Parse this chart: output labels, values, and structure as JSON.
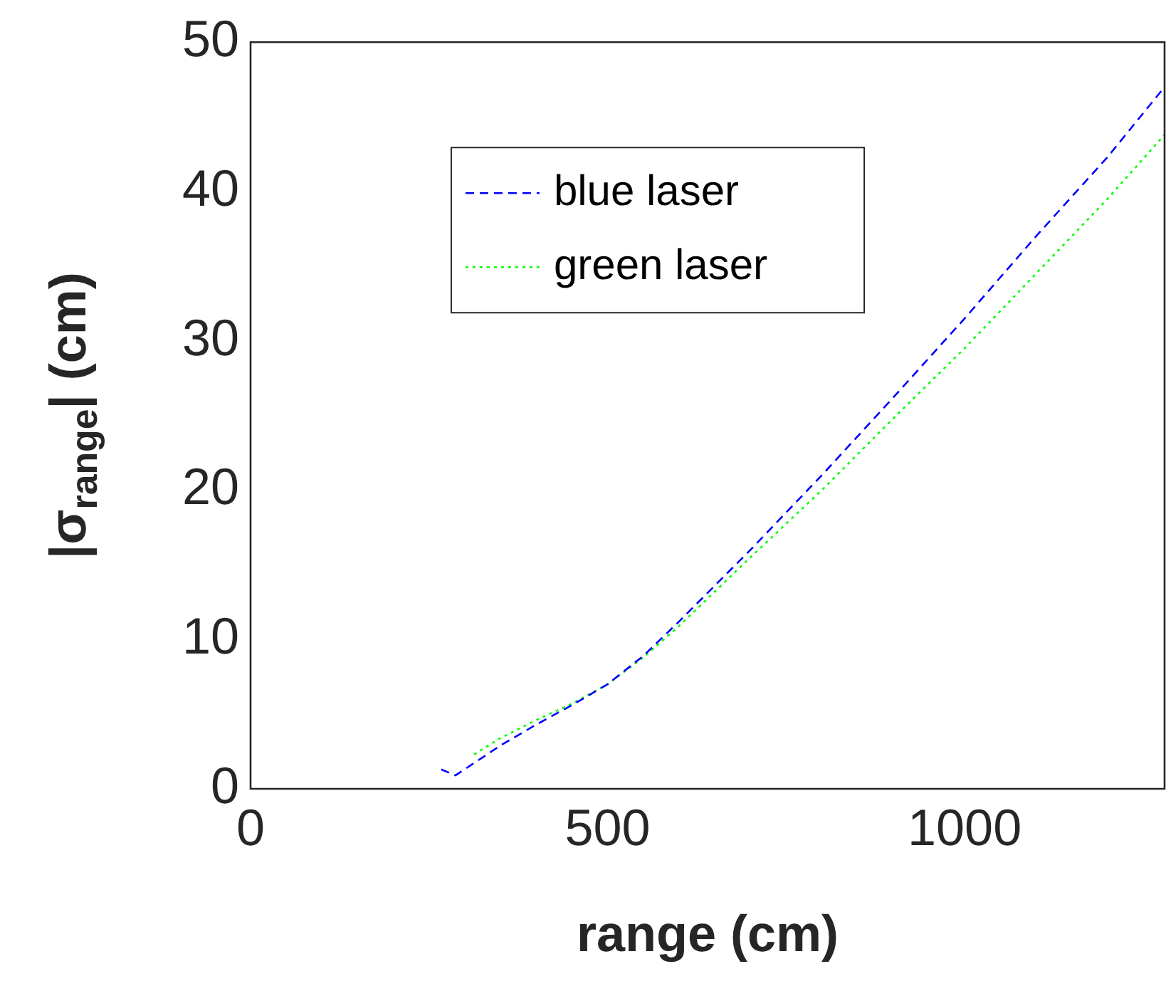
{
  "chart_data": {
    "type": "line",
    "xlabel": "range (cm)",
    "ylabel": "|σ$_{range}$| (cm)",
    "xlim": [
      0,
      1280
    ],
    "xticks": [
      0,
      500,
      1000
    ],
    "ylim": [
      0,
      50
    ],
    "yticks": [
      0,
      10,
      20,
      30,
      40,
      50
    ],
    "grid": false,
    "legend": "top",
    "marker": "none",
    "series": [
      {
        "name": "blue laser",
        "color": "#0000ff",
        "line_style": "dashed",
        "x": [
          267,
          287,
          350,
          400,
          450,
          500,
          550,
          600,
          700,
          800,
          900,
          1000,
          1100,
          1200,
          1280
        ],
        "values": [
          1.3,
          0.9,
          2.9,
          4.3,
          5.6,
          7.0,
          8.9,
          11.2,
          16.0,
          21.0,
          26.2,
          31.5,
          37.0,
          42.3,
          47.0
        ]
      },
      {
        "name": "green laser",
        "color": "#00ff00",
        "line_style": "dotted",
        "x": [
          313,
          350,
          400,
          450,
          500,
          550,
          600,
          700,
          800,
          900,
          1000,
          1100,
          1200,
          1280
        ],
        "values": [
          2.3,
          3.4,
          4.6,
          5.7,
          7.0,
          8.8,
          10.9,
          15.5,
          20.0,
          24.8,
          29.5,
          34.5,
          39.5,
          43.8
        ]
      }
    ]
  }
}
